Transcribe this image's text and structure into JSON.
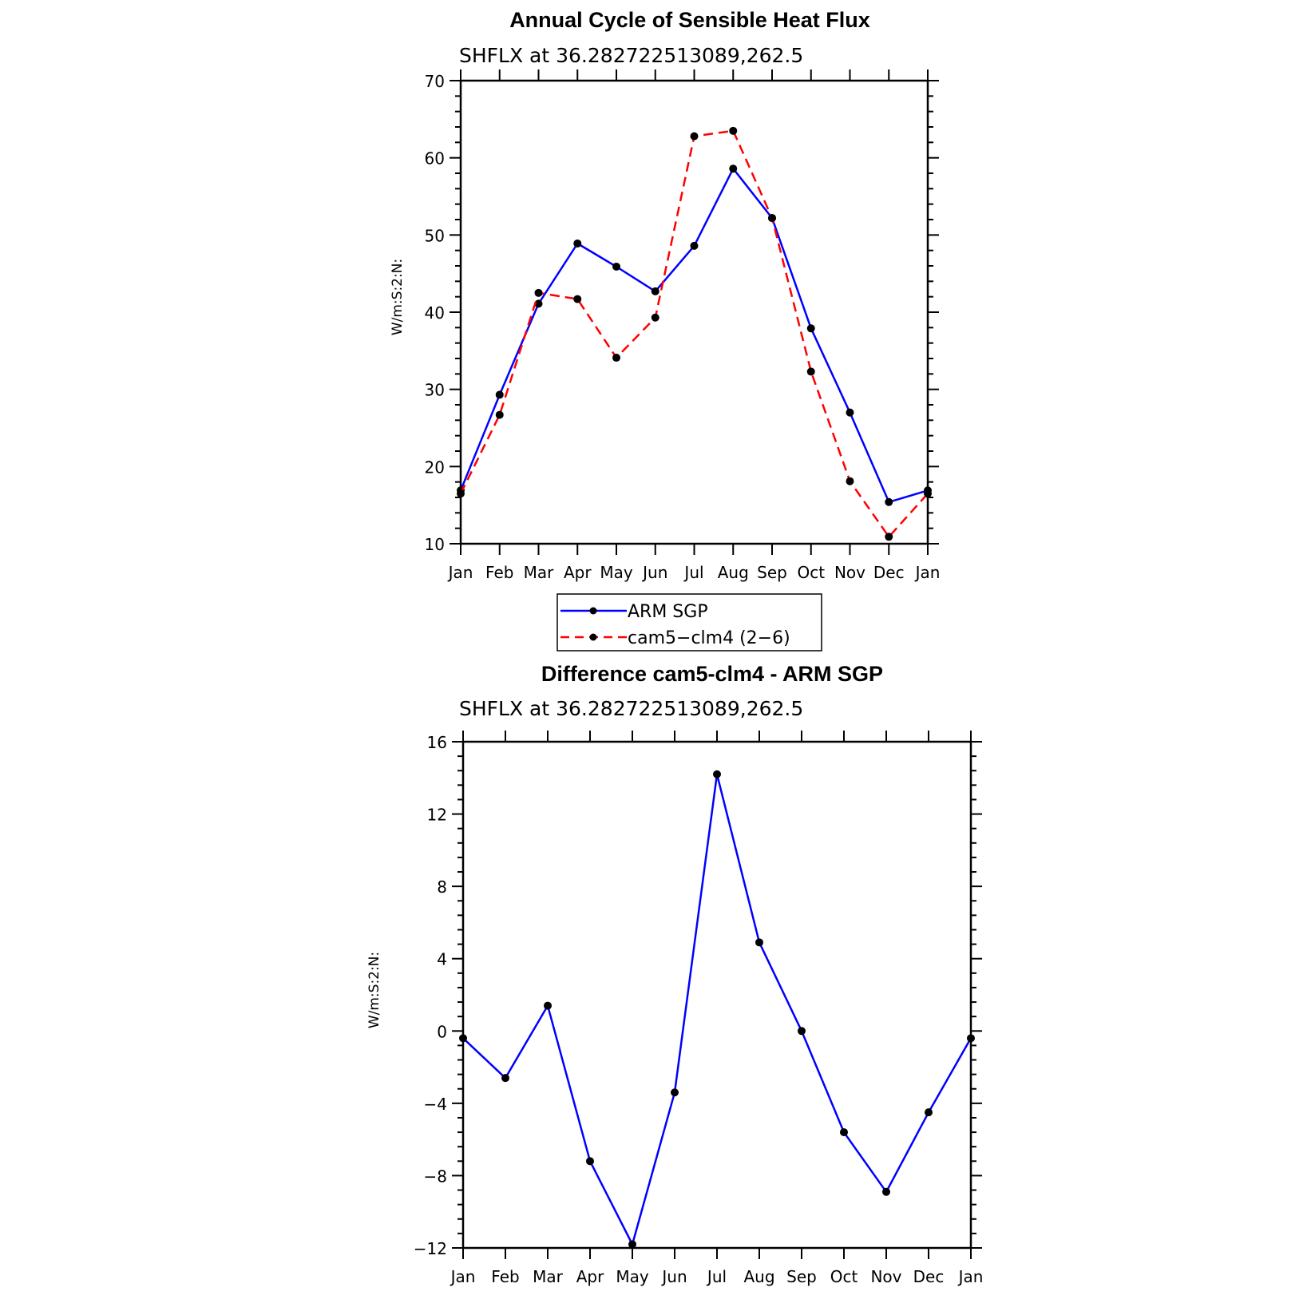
{
  "chart_data": [
    {
      "type": "line",
      "title": "Annual Cycle of Sensible Heat Flux",
      "subtitle": "SHFLX at 36.282722513089,262.5",
      "ylabel": "W/m:S:2:N:",
      "xlabel": "",
      "categories": [
        "Jan",
        "Feb",
        "Mar",
        "Apr",
        "May",
        "Jun",
        "Jul",
        "Aug",
        "Sep",
        "Oct",
        "Nov",
        "Dec",
        "Jan"
      ],
      "ylim": [
        10,
        70
      ],
      "yticks": [
        10,
        20,
        30,
        40,
        50,
        60,
        70
      ],
      "series": [
        {
          "name": "ARM SGP",
          "color": "#0000ff",
          "dash": "solid",
          "values": [
            16.9,
            29.3,
            41.1,
            48.9,
            45.9,
            42.7,
            48.6,
            58.6,
            52.2,
            37.9,
            27.0,
            15.4,
            16.9
          ]
        },
        {
          "name": "cam5−clm4 (2−6)",
          "color": "#ff0000",
          "dash": "dashed",
          "values": [
            16.5,
            26.7,
            42.5,
            41.7,
            34.1,
            39.3,
            62.8,
            63.5,
            52.2,
            32.3,
            18.1,
            10.9,
            16.5
          ]
        }
      ],
      "legend": "below"
    },
    {
      "type": "line",
      "title": "Difference cam5-clm4 - ARM SGP",
      "subtitle": "SHFLX at 36.282722513089,262.5",
      "ylabel": "W/m:S:2:N:",
      "xlabel": "",
      "categories": [
        "Jan",
        "Feb",
        "Mar",
        "Apr",
        "May",
        "Jun",
        "Jul",
        "Aug",
        "Sep",
        "Oct",
        "Nov",
        "Dec",
        "Jan"
      ],
      "ylim": [
        -12,
        16
      ],
      "yticks": [
        -12,
        -8,
        -4,
        0,
        4,
        8,
        12,
        16
      ],
      "series": [
        {
          "color": "#0000ff",
          "dash": "solid",
          "values": [
            -0.4,
            -2.6,
            1.4,
            -7.2,
            -11.8,
            -3.4,
            14.2,
            4.9,
            0.0,
            -5.6,
            -8.9,
            -4.5,
            -0.4
          ]
        }
      ]
    }
  ]
}
